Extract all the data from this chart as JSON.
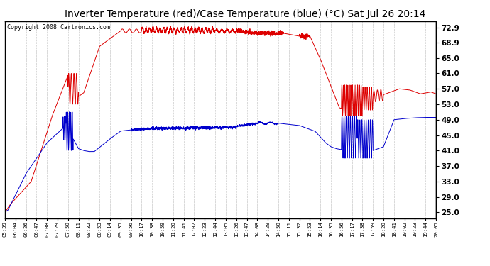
{
  "title": "Inverter Temperature (red)/Case Temperature (blue) (°C) Sat Jul 26 20:14",
  "copyright": "Copyright 2008 Cartronics.com",
  "ylabel_right_ticks": [
    25.0,
    29.0,
    33.0,
    37.0,
    41.0,
    45.0,
    49.0,
    53.0,
    57.0,
    61.0,
    65.0,
    68.9,
    72.9
  ],
  "ymin": 23.5,
  "ymax": 74.5,
  "background_color": "#ffffff",
  "plot_bg_color": "#ffffff",
  "grid_color": "#bbbbbb",
  "red_color": "#dd0000",
  "blue_color": "#0000cc",
  "title_fontsize": 10,
  "copyright_fontsize": 6,
  "xtick_labels": [
    "05:39",
    "06:04",
    "06:26",
    "06:47",
    "07:08",
    "07:29",
    "07:50",
    "08:11",
    "08:32",
    "08:53",
    "09:14",
    "09:35",
    "09:56",
    "10:17",
    "10:38",
    "10:59",
    "11:20",
    "11:41",
    "12:02",
    "12:23",
    "12:44",
    "13:05",
    "13:26",
    "13:47",
    "14:08",
    "14:29",
    "14:50",
    "15:11",
    "15:32",
    "15:53",
    "16:14",
    "16:35",
    "16:56",
    "17:17",
    "17:38",
    "17:59",
    "18:20",
    "18:41",
    "19:02",
    "19:23",
    "19:44",
    "20:05"
  ]
}
